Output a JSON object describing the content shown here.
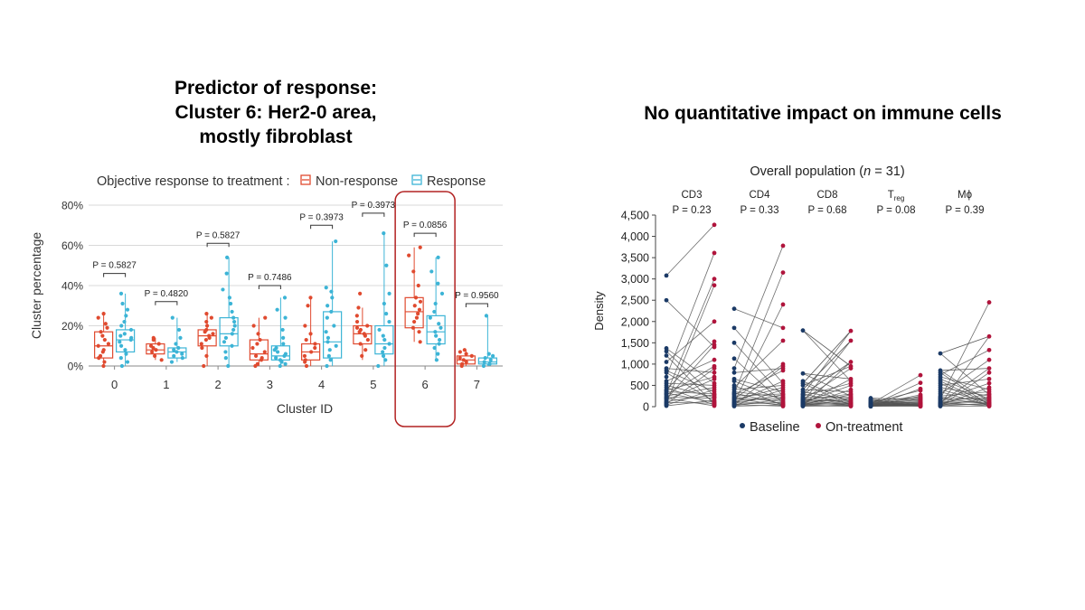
{
  "headings": {
    "left": [
      "Predictor of response:",
      "Cluster 6: Her2-0 area,",
      "mostly fibroblast"
    ],
    "right": "No quantitative impact on immune cells"
  },
  "colors": {
    "non_response": "#e04a2f",
    "response": "#3cb4d6",
    "baseline": "#1b3a66",
    "on_treatment": "#b0143c",
    "highlight": "#b22222",
    "grid": "#d9d9d9",
    "line": "#555555"
  },
  "chart_data": [
    {
      "type": "boxplot",
      "legend_title": "Objective response to treatment :",
      "legend": [
        "Non-response",
        "Response"
      ],
      "xlabel": "Cluster ID",
      "ylabel": "Cluster percentage",
      "ylim": [
        0,
        80
      ],
      "yticks": [
        "0%",
        "20%",
        "40%",
        "60%",
        "80%"
      ],
      "ytick_values": [
        0,
        20,
        40,
        60,
        80
      ],
      "categories": [
        "0",
        "1",
        "2",
        "3",
        "4",
        "5",
        "6",
        "7"
      ],
      "highlight_category": "6",
      "p_values": [
        "P = 0.5827",
        "P = 0.4820",
        "P = 0.5827",
        "P = 0.7486",
        "P = 0.3973",
        "P = 0.3973",
        "P = 0.0856",
        "P = 0.9560"
      ],
      "bracket_levels": [
        46,
        32,
        61,
        40,
        70,
        76,
        66,
        31
      ],
      "series": [
        {
          "name": "Non-response",
          "boxes": [
            {
              "q1": 4,
              "median": 10,
              "q3": 17,
              "min": 0,
              "max": 27
            },
            {
              "q1": 6,
              "median": 8,
              "q3": 11,
              "min": 3,
              "max": 14
            },
            {
              "q1": 10,
              "median": 15,
              "q3": 18,
              "min": 0,
              "max": 26
            },
            {
              "q1": 3,
              "median": 6,
              "q3": 13,
              "min": 0,
              "max": 24
            },
            {
              "q1": 3,
              "median": 7,
              "q3": 11,
              "min": 0,
              "max": 34
            },
            {
              "q1": 11,
              "median": 16,
              "q3": 20,
              "min": 3,
              "max": 29
            },
            {
              "q1": 19,
              "median": 27,
              "q3": 34,
              "min": 12,
              "max": 59
            },
            {
              "q1": 1,
              "median": 3,
              "q3": 5,
              "min": 0,
              "max": 8
            }
          ],
          "points": [
            [
              0,
              2,
              4,
              5,
              7,
              8,
              10,
              11,
              13,
              15,
              17,
              19,
              21,
              24,
              26
            ],
            [
              3,
              5,
              7,
              8,
              9,
              10,
              11,
              13,
              14
            ],
            [
              0,
              5,
              9,
              11,
              13,
              14,
              15,
              16,
              17,
              18,
              20,
              22,
              24,
              26
            ],
            [
              0,
              1,
              3,
              4,
              5,
              7,
              9,
              11,
              13,
              16,
              20,
              24
            ],
            [
              0,
              2,
              3,
              5,
              7,
              9,
              11,
              13,
              16,
              20,
              30,
              34
            ],
            [
              5,
              8,
              11,
              13,
              15,
              16,
              17,
              18,
              19,
              20,
              22,
              25,
              29,
              36
            ],
            [
              12,
              17,
              19,
              22,
              24,
              26,
              28,
              30,
              32,
              34,
              40,
              47,
              55,
              59
            ],
            [
              0,
              1,
              2,
              3,
              4,
              5,
              6,
              7,
              8
            ]
          ]
        },
        {
          "name": "Response",
          "boxes": [
            {
              "q1": 7,
              "median": 13,
              "q3": 18,
              "min": 0,
              "max": 36
            },
            {
              "q1": 4,
              "median": 7,
              "q3": 9,
              "min": 2,
              "max": 24
            },
            {
              "q1": 10,
              "median": 16,
              "q3": 24,
              "min": 0,
              "max": 54
            },
            {
              "q1": 3,
              "median": 5,
              "q3": 10,
              "min": 0,
              "max": 34
            },
            {
              "q1": 4,
              "median": 12,
              "q3": 27,
              "min": 0,
              "max": 62
            },
            {
              "q1": 6,
              "median": 11,
              "q3": 20,
              "min": 0,
              "max": 66
            },
            {
              "q1": 11,
              "median": 17,
              "q3": 25,
              "min": 3,
              "max": 54
            },
            {
              "q1": 1,
              "median": 2,
              "q3": 4,
              "min": 0,
              "max": 25
            }
          ],
          "points": [
            [
              0,
              2,
              4,
              6,
              8,
              10,
              12,
              13,
              14,
              15,
              16,
              18,
              20,
              22,
              25,
              28,
              31,
              36
            ],
            [
              2,
              4,
              5,
              6,
              7,
              8,
              9,
              11,
              14,
              18,
              24
            ],
            [
              0,
              4,
              7,
              10,
              12,
              14,
              16,
              18,
              20,
              22,
              24,
              27,
              31,
              34,
              38,
              46,
              54
            ],
            [
              0,
              1,
              2,
              3,
              4,
              5,
              6,
              7,
              8,
              9,
              11,
              14,
              18,
              24,
              28,
              34
            ],
            [
              0,
              3,
              5,
              8,
              10,
              12,
              14,
              17,
              20,
              24,
              27,
              30,
              34,
              37,
              39,
              62
            ],
            [
              0,
              3,
              5,
              7,
              9,
              11,
              13,
              15,
              18,
              22,
              26,
              31,
              36,
              50,
              66
            ],
            [
              3,
              6,
              9,
              11,
              13,
              15,
              17,
              19,
              21,
              24,
              27,
              31,
              36,
              41,
              47,
              54
            ],
            [
              0,
              1,
              2,
              3,
              4,
              5,
              6,
              25
            ]
          ]
        }
      ]
    },
    {
      "type": "paired-dot",
      "title": "Overall population (n = 31)",
      "title_prefix": "Overall population (",
      "title_n": "n",
      "title_suffix": " = 31)",
      "ylabel": "Density",
      "ylim": [
        0,
        4500
      ],
      "yticks": [
        "0",
        "500",
        "1,000",
        "1,500",
        "2,000",
        "2,500",
        "3,000",
        "3,500",
        "4,000",
        "4,500"
      ],
      "ytick_values": [
        0,
        500,
        1000,
        1500,
        2000,
        2500,
        3000,
        3500,
        4000,
        4500
      ],
      "legend": [
        "Baseline",
        "On-treatment"
      ],
      "groups": [
        {
          "label": "CD3",
          "label_sub": "",
          "p_value": "P = 0.23",
          "baseline": [
            3080,
            2500,
            1370,
            1300,
            1200,
            1050,
            900,
            850,
            800,
            700,
            600,
            550,
            500,
            450,
            400,
            380,
            350,
            320,
            300,
            280,
            250,
            220,
            200,
            180,
            150,
            120,
            100,
            80,
            60,
            40,
            20
          ],
          "on_treatment": [
            4270,
            3610,
            3000,
            2850,
            2000,
            1530,
            1450,
            1400,
            1100,
            950,
            900,
            800,
            700,
            650,
            550,
            500,
            450,
            400,
            350,
            300,
            280,
            250,
            220,
            200,
            150,
            120,
            100,
            80,
            60,
            40,
            20
          ]
        },
        {
          "label": "CD4",
          "label_sub": "",
          "p_value": "P = 0.33",
          "baseline": [
            2300,
            1850,
            1500,
            1130,
            900,
            800,
            650,
            600,
            500,
            450,
            400,
            350,
            320,
            300,
            280,
            250,
            220,
            200,
            180,
            160,
            140,
            120,
            100,
            90,
            80,
            60,
            50,
            40,
            30,
            20,
            10
          ],
          "on_treatment": [
            3780,
            3150,
            2400,
            1850,
            1550,
            1000,
            950,
            900,
            850,
            600,
            550,
            500,
            450,
            400,
            350,
            300,
            280,
            250,
            220,
            200,
            180,
            150,
            120,
            100,
            80,
            60,
            50,
            40,
            30,
            20,
            10
          ]
        },
        {
          "label": "CD8",
          "label_sub": "",
          "p_value": "P = 0.68",
          "baseline": [
            1790,
            780,
            600,
            550,
            500,
            400,
            350,
            300,
            280,
            250,
            220,
            200,
            180,
            160,
            150,
            140,
            120,
            110,
            100,
            90,
            80,
            70,
            60,
            50,
            45,
            40,
            30,
            25,
            20,
            15,
            10
          ],
          "on_treatment": [
            1780,
            1550,
            1050,
            950,
            900,
            650,
            600,
            550,
            500,
            400,
            350,
            300,
            280,
            250,
            220,
            200,
            180,
            160,
            140,
            120,
            100,
            90,
            80,
            70,
            60,
            50,
            40,
            30,
            20,
            15,
            10
          ],
          "lines": [
            [
              0,
              3
            ],
            [
              3,
              0
            ],
            [
              5,
              1
            ],
            [
              8,
              2
            ],
            [
              1,
              5
            ]
          ]
        },
        {
          "label": "T",
          "label_sub": "reg",
          "p_value": "P = 0.08",
          "baseline": [
            200,
            180,
            160,
            150,
            140,
            120,
            110,
            100,
            90,
            80,
            75,
            70,
            65,
            60,
            55,
            50,
            45,
            40,
            35,
            30,
            28,
            26,
            24,
            22,
            20,
            18,
            15,
            12,
            10,
            8,
            5
          ],
          "on_treatment": [
            740,
            560,
            420,
            380,
            280,
            250,
            220,
            200,
            180,
            160,
            140,
            120,
            100,
            90,
            80,
            70,
            60,
            55,
            50,
            45,
            40,
            35,
            30,
            28,
            25,
            20,
            18,
            15,
            12,
            10,
            5
          ]
        },
        {
          "label": "Mϕ",
          "label_sub": "",
          "p_value": "P = 0.39",
          "baseline": [
            1250,
            850,
            800,
            750,
            700,
            650,
            600,
            550,
            500,
            450,
            400,
            350,
            300,
            250,
            220,
            200,
            180,
            160,
            140,
            120,
            100,
            90,
            80,
            70,
            60,
            50,
            40,
            30,
            20,
            15,
            10
          ],
          "on_treatment": [
            2450,
            1650,
            1330,
            1100,
            900,
            800,
            650,
            550,
            450,
            400,
            350,
            300,
            280,
            250,
            220,
            200,
            180,
            160,
            140,
            120,
            100,
            90,
            80,
            70,
            60,
            50,
            40,
            30,
            20,
            15,
            10
          ],
          "lines": [
            [
              0,
              1
            ],
            [
              1,
              4
            ]
          ]
        }
      ]
    }
  ]
}
